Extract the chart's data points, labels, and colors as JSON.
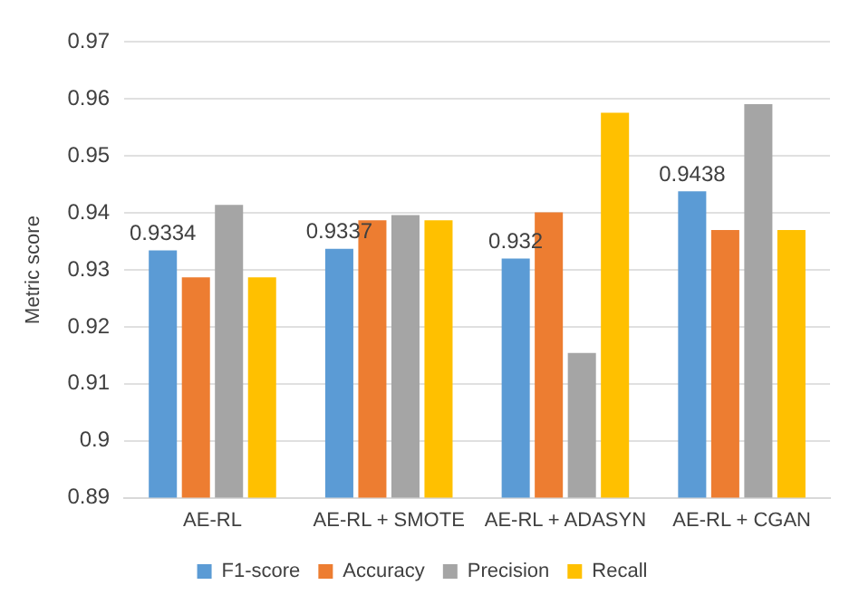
{
  "chart_data": {
    "type": "bar",
    "ylabel": "Metric score",
    "categories": [
      "AE-RL",
      "AE-RL + SMOTE",
      "AE-RL + ADASYN",
      "AE-RL + CGAN"
    ],
    "series": [
      {
        "name": "F1-score",
        "color": "#5b9bd5",
        "values": [
          0.9334,
          0.9337,
          0.932,
          0.9438
        ],
        "value_labels": [
          "0.9334",
          "0.9337",
          "0.932",
          "0.9438"
        ]
      },
      {
        "name": "Accuracy",
        "color": "#ed7d31",
        "values": [
          0.9287,
          0.9387,
          0.9401,
          0.937
        ]
      },
      {
        "name": "Precision",
        "color": "#a5a5a5",
        "values": [
          0.9414,
          0.9396,
          0.9154,
          0.9591
        ]
      },
      {
        "name": "Recall",
        "color": "#ffc000",
        "values": [
          0.9287,
          0.9387,
          0.9576,
          0.937
        ]
      }
    ],
    "ylim": [
      0.89,
      0.97
    ],
    "yticks": [
      0.89,
      0.9,
      0.91,
      0.92,
      0.93,
      0.94,
      0.95,
      0.96,
      0.97
    ],
    "grid": "y",
    "legend": "bottom"
  }
}
